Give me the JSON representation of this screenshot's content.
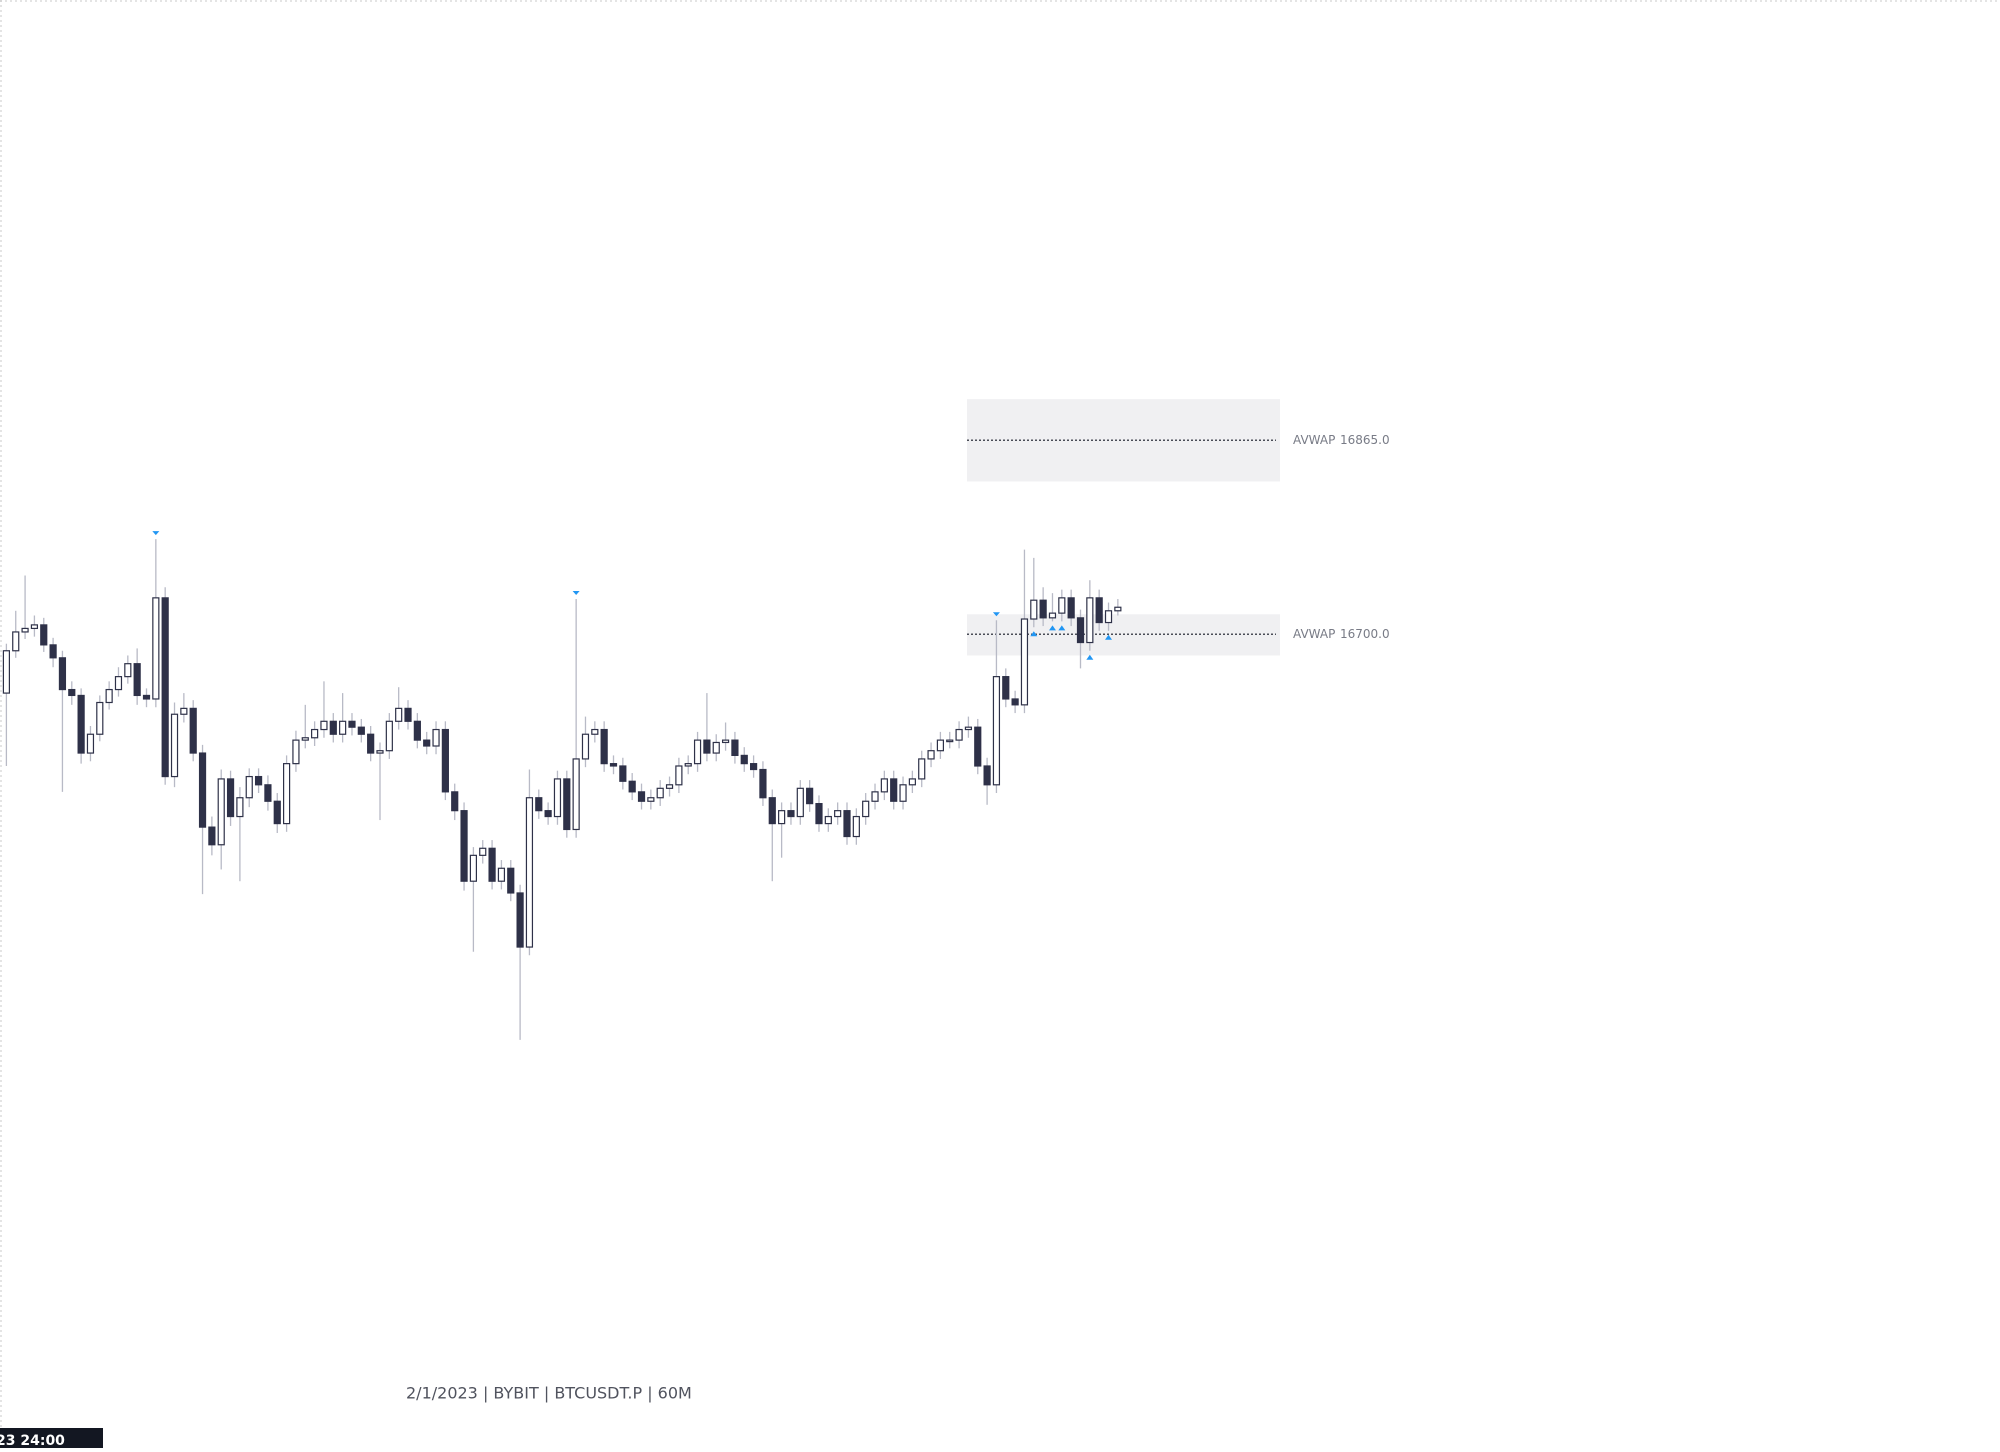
{
  "chart_data": {
    "type": "candlestick",
    "watermark": "2/1/2023 | BYBIT | BTCUSDT.P | 60M",
    "open": [
      16650,
      16686,
      16702,
      16705,
      16708,
      16691,
      16680,
      16653,
      16648,
      16599,
      16615,
      16642,
      16653,
      16664,
      16675,
      16648,
      16645,
      16731,
      16579,
      16632,
      16637,
      16599,
      16536,
      16521,
      16577,
      16545,
      16561,
      16579,
      16572,
      16558,
      16539,
      16590,
      16610,
      16612,
      16619,
      16626,
      16615,
      16626,
      16621,
      16615,
      16599,
      16601,
      16626,
      16637,
      16626,
      16610,
      16605,
      16619,
      16566,
      16550,
      16490,
      16512,
      16518,
      16490,
      16501,
      16480,
      16434,
      16561,
      16550,
      16545,
      16577,
      16534,
      16594,
      16615,
      16619,
      16590,
      16588,
      16575,
      16566,
      16558,
      16561,
      16569,
      16572,
      16588,
      16590,
      16610,
      16599,
      16608,
      16610,
      16597,
      16590,
      16585,
      16561,
      16539,
      16550,
      16545,
      16569,
      16556,
      16539,
      16545,
      16550,
      16528,
      16545,
      16558,
      16566,
      16577,
      16558,
      16572,
      16577,
      16594,
      16601,
      16610,
      16610,
      16619,
      16621,
      16588,
      16572,
      16664,
      16645,
      16640,
      16713,
      16729,
      16714,
      16718,
      16731,
      16714,
      16693,
      16731,
      16710,
      16720
    ],
    "high": [
      16692,
      16720,
      16750,
      16716,
      16714,
      16697,
      16686,
      16660,
      16654,
      16622,
      16648,
      16660,
      16672,
      16682,
      16688,
      16654,
      16781,
      16740,
      16642,
      16650,
      16644,
      16606,
      16545,
      16585,
      16584,
      16570,
      16586,
      16586,
      16580,
      16565,
      16597,
      16618,
      16640,
      16626,
      16660,
      16633,
      16650,
      16633,
      16628,
      16622,
      16608,
      16633,
      16655,
      16644,
      16633,
      16617,
      16626,
      16626,
      16573,
      16557,
      16519,
      16525,
      16525,
      16508,
      16508,
      16487,
      16585,
      16568,
      16557,
      16584,
      16584,
      16730,
      16630,
      16626,
      16626,
      16597,
      16595,
      16582,
      16573,
      16568,
      16576,
      16579,
      16595,
      16597,
      16617,
      16650,
      16615,
      16625,
      16617,
      16604,
      16597,
      16592,
      16568,
      16557,
      16557,
      16576,
      16576,
      16563,
      16552,
      16557,
      16557,
      16552,
      16565,
      16573,
      16584,
      16584,
      16579,
      16584,
      16601,
      16608,
      16617,
      16617,
      16626,
      16630,
      16628,
      16595,
      16712,
      16671,
      16652,
      16772,
      16765,
      16740,
      16735,
      16738,
      16738,
      16721,
      16746,
      16738,
      16727,
      16730
    ],
    "low": [
      16588,
      16680,
      16696,
      16698,
      16685,
      16672,
      16566,
      16640,
      16590,
      16592,
      16609,
      16636,
      16647,
      16658,
      16640,
      16638,
      16638,
      16572,
      16570,
      16625,
      16592,
      16479,
      16512,
      16500,
      16537,
      16490,
      16553,
      16565,
      16550,
      16531,
      16532,
      16583,
      16603,
      16605,
      16612,
      16608,
      16608,
      16614,
      16608,
      16592,
      16542,
      16594,
      16619,
      16619,
      16603,
      16598,
      16598,
      16559,
      16542,
      16482,
      16430,
      16505,
      16483,
      16483,
      16473,
      16355,
      16427,
      16543,
      16538,
      16538,
      16527,
      16527,
      16587,
      16608,
      16583,
      16581,
      16568,
      16559,
      16551,
      16551,
      16554,
      16562,
      16565,
      16581,
      16583,
      16592,
      16592,
      16601,
      16590,
      16583,
      16578,
      16554,
      16490,
      16510,
      16538,
      16538,
      16549,
      16532,
      16532,
      16538,
      16521,
      16521,
      16538,
      16551,
      16559,
      16551,
      16551,
      16565,
      16570,
      16587,
      16594,
      16603,
      16603,
      16612,
      16581,
      16555,
      16565,
      16638,
      16633,
      16633,
      16706,
      16707,
      16711,
      16711,
      16707,
      16671,
      16686,
      16703,
      16703,
      16716
    ],
    "close": [
      16686,
      16702,
      16705,
      16708,
      16691,
      16680,
      16653,
      16648,
      16599,
      16615,
      16642,
      16653,
      16664,
      16675,
      16648,
      16645,
      16731,
      16579,
      16632,
      16637,
      16599,
      16536,
      16521,
      16577,
      16545,
      16561,
      16579,
      16572,
      16558,
      16539,
      16590,
      16610,
      16612,
      16619,
      16626,
      16615,
      16626,
      16621,
      16615,
      16599,
      16601,
      16626,
      16637,
      16626,
      16610,
      16605,
      16619,
      16566,
      16550,
      16490,
      16512,
      16518,
      16490,
      16501,
      16480,
      16434,
      16561,
      16550,
      16545,
      16577,
      16534,
      16594,
      16615,
      16619,
      16590,
      16588,
      16575,
      16566,
      16558,
      16561,
      16569,
      16572,
      16588,
      16590,
      16610,
      16599,
      16608,
      16610,
      16597,
      16590,
      16585,
      16561,
      16539,
      16550,
      16545,
      16569,
      16556,
      16539,
      16545,
      16550,
      16528,
      16545,
      16558,
      16566,
      16577,
      16558,
      16572,
      16577,
      16594,
      16601,
      16610,
      16610,
      16619,
      16621,
      16588,
      16572,
      16664,
      16645,
      16640,
      16713,
      16729,
      16714,
      16718,
      16731,
      16714,
      16693,
      16731,
      16710,
      16720,
      16723
    ],
    "colors": {
      "up": "#ffffff",
      "down": "#2e3148",
      "outline": "#2e3148",
      "wick": "#b8bac6",
      "marker": "#2196f3"
    },
    "markers_down": [
      16,
      61,
      106
    ],
    "markers_up": [
      110,
      112,
      113,
      116,
      118
    ],
    "levels": {
      "names": [
        "AVWAP",
        "AVWAP"
      ],
      "values": [
        16865,
        16700
      ],
      "value_labels": [
        "16865.0",
        "16700.0"
      ],
      "zones": [
        [
          16830,
          16900
        ],
        [
          16682,
          16717
        ]
      ]
    }
  },
  "time_label": "23  24:00"
}
